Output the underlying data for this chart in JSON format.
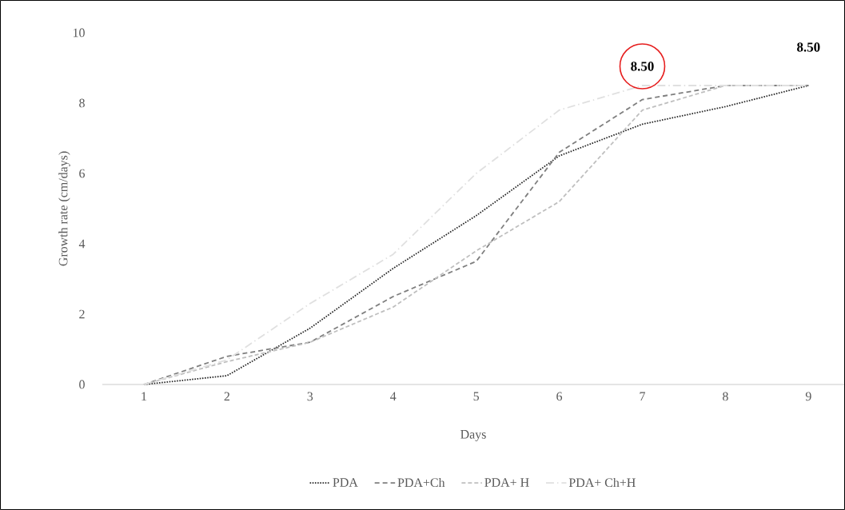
{
  "chart_data": {
    "type": "line",
    "xlabel": "Days",
    "ylabel": "Growth rate (cm/days)",
    "categories": [
      "1",
      "2",
      "3",
      "4",
      "5",
      "6",
      "7",
      "8",
      "9"
    ],
    "ylim": [
      0,
      10
    ],
    "yticks": [
      0,
      2,
      4,
      6,
      8,
      10
    ],
    "grid": false,
    "legend": "bottom",
    "series": [
      {
        "name": "PDA",
        "color": "#262626",
        "line_style": "dotted",
        "values": [
          0,
          0.25,
          1.6,
          3.3,
          4.8,
          6.5,
          7.4,
          7.9,
          8.5
        ]
      },
      {
        "name": "PDA+Ch",
        "color": "#7f7f7f",
        "line_style": "dashed",
        "values": [
          0,
          0.8,
          1.2,
          2.5,
          3.5,
          6.6,
          8.1,
          8.5,
          8.5
        ]
      },
      {
        "name": "PDA+ H",
        "color": "#bfbfbf",
        "line_style": "dashed",
        "values": [
          0,
          0.65,
          1.2,
          2.2,
          3.8,
          5.2,
          7.8,
          8.5,
          8.5
        ]
      },
      {
        "name": "PDA+ Ch+H",
        "color": "#e0e0e0",
        "line_style": "dashdot",
        "values": [
          0,
          0.7,
          2.3,
          3.7,
          6.0,
          7.8,
          8.5,
          8.5,
          8.5
        ]
      }
    ],
    "annotations": [
      {
        "text": "8.50",
        "x": "7",
        "y": 8.5
      },
      {
        "text": "8.50",
        "x": "9",
        "y": 8.5
      }
    ]
  }
}
